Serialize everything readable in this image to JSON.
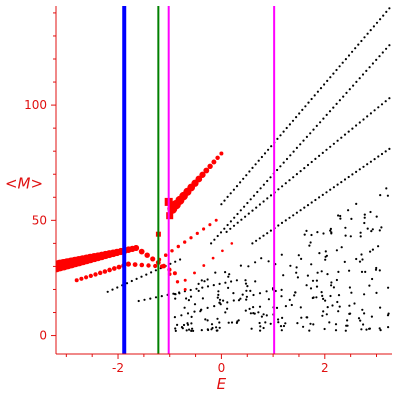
{
  "chart_data": {
    "type": "scatter",
    "title": "",
    "xlabel": "E",
    "ylabel": "<M>",
    "xlim": [
      -3.2,
      3.3
    ],
    "ylim": [
      -8,
      143
    ],
    "xticks": [
      {
        "value": -2,
        "label": "-2"
      },
      {
        "value": 0,
        "label": "0"
      },
      {
        "value": 2,
        "label": "2"
      }
    ],
    "yticks": [
      {
        "value": 0,
        "label": "0"
      },
      {
        "value": 50,
        "label": "50"
      },
      {
        "value": 100,
        "label": "100"
      }
    ],
    "grid": false,
    "colors": {
      "axis": "#e01010",
      "points_black": "#000000",
      "points_red": "#ff0000"
    },
    "vertical_lines": [
      {
        "x": -1.88,
        "color": "#0000ff",
        "width": 4
      },
      {
        "x": -1.22,
        "color": "#008000",
        "width": 2
      },
      {
        "x": -1.02,
        "color": "#ff00ff",
        "width": 2
      },
      {
        "x": 1.02,
        "color": "#ff00ff",
        "width": 2
      }
    ],
    "red_branches": [
      {
        "x_start": -0.95,
        "x_end": 0.0,
        "y_start": 55,
        "y_end": 79,
        "n": 14,
        "size_start": 5,
        "size_end": 2
      },
      {
        "x_start": -3.2,
        "x_end": -1.65,
        "y_start": 30,
        "y_end": 38,
        "n": 22,
        "size_start": 6,
        "size_end": 3
      },
      {
        "x_start": -1.65,
        "x_end": -0.9,
        "y_start": 38,
        "y_end": 27,
        "n": 8,
        "size_start": 3,
        "size_end": 2
      },
      {
        "x_start": -2.8,
        "x_end": -1.8,
        "y_start": 24,
        "y_end": 31,
        "n": 12,
        "size_start": 2,
        "size_end": 2.5
      },
      {
        "x_start": -1.8,
        "x_end": -1.15,
        "y_start": 31,
        "y_end": 30,
        "n": 6,
        "size_start": 2.5,
        "size_end": 2
      },
      {
        "x_start": -1.15,
        "x_end": -0.7,
        "y_start": 30,
        "y_end": 20,
        "n": 4,
        "size_start": 2,
        "size_end": 1.5
      },
      {
        "x_start": -1.2,
        "x_end": -0.1,
        "y_start": 33,
        "y_end": 50,
        "n": 10,
        "size_start": 1.8,
        "size_end": 1.5
      },
      {
        "x_start": -0.7,
        "x_end": 0.2,
        "y_start": 24,
        "y_end": 40,
        "n": 6,
        "size_start": 1.5,
        "size_end": 1.3
      }
    ],
    "red_singles": [
      {
        "x": -1.22,
        "y": 44,
        "size": 2.5
      },
      {
        "x": -1.0,
        "y": 52,
        "size": 3.5
      },
      {
        "x": -1.02,
        "y": 58,
        "size": 4
      }
    ],
    "black_branches": [
      {
        "x_start": 0.0,
        "x_end": 3.25,
        "y_start": 57,
        "y_end": 142,
        "n": 55
      },
      {
        "x_start": -0.2,
        "x_end": 3.25,
        "y_start": 40,
        "y_end": 126,
        "n": 55
      },
      {
        "x_start": 0.1,
        "x_end": 3.25,
        "y_start": 45,
        "y_end": 103,
        "n": 45
      },
      {
        "x_start": 0.6,
        "x_end": 3.25,
        "y_start": 40,
        "y_end": 81,
        "n": 38
      },
      {
        "x_start": -2.2,
        "x_end": -0.8,
        "y_start": 19,
        "y_end": 33,
        "n": 16
      },
      {
        "x_start": -1.6,
        "x_end": 0.3,
        "y_start": 15,
        "y_end": 24,
        "n": 18
      },
      {
        "x_start": -0.9,
        "x_end": 1.0,
        "y_start": 8,
        "y_end": 20,
        "n": 16
      }
    ],
    "black_cloud": {
      "x_range": [
        -0.9,
        3.25
      ],
      "y_range": [
        2,
        65
      ],
      "count": 260,
      "seed": 7
    }
  }
}
